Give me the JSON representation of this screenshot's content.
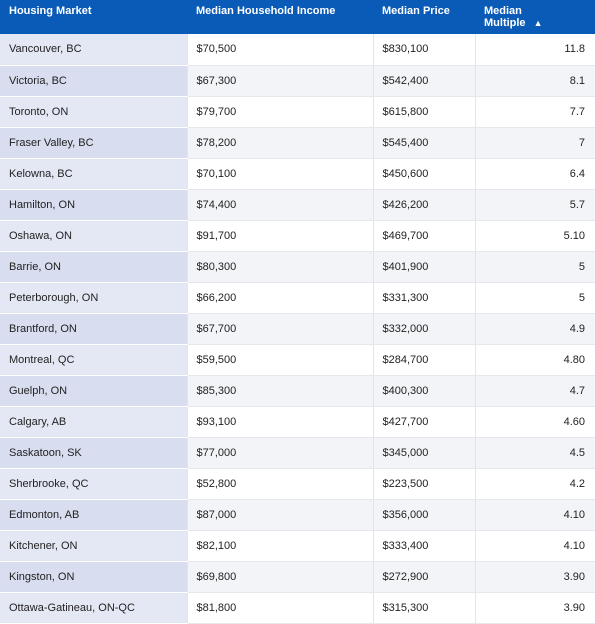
{
  "table": {
    "headers": {
      "market": "Housing Market",
      "income": "Median Household Income",
      "price": "Median Price",
      "multiple_line1": "Median",
      "multiple_line2": "Multiple"
    },
    "sort": {
      "column": "Median Multiple",
      "direction": "descending-arrow-up",
      "icon": "sort-arrow-up-icon"
    },
    "colors": {
      "header_bg": "#0a5bb8",
      "market_bg": "#e4e8f5",
      "market_bg_alt": "#d8ddef"
    },
    "rows": [
      {
        "market": "Vancouver, BC",
        "income": "$70,500",
        "price": "$830,100",
        "multiple": "11.8"
      },
      {
        "market": "Victoria, BC",
        "income": "$67,300",
        "price": "$542,400",
        "multiple": "8.1"
      },
      {
        "market": "Toronto, ON",
        "income": "$79,700",
        "price": "$615,800",
        "multiple": "7.7"
      },
      {
        "market": "Fraser Valley, BC",
        "income": "$78,200",
        "price": "$545,400",
        "multiple": "7"
      },
      {
        "market": "Kelowna, BC",
        "income": "$70,100",
        "price": "$450,600",
        "multiple": "6.4"
      },
      {
        "market": "Hamilton, ON",
        "income": "$74,400",
        "price": "$426,200",
        "multiple": "5.7"
      },
      {
        "market": "Oshawa, ON",
        "income": "$91,700",
        "price": "$469,700",
        "multiple": "5.10"
      },
      {
        "market": "Barrie, ON",
        "income": "$80,300",
        "price": "$401,900",
        "multiple": "5"
      },
      {
        "market": "Peterborough, ON",
        "income": "$66,200",
        "price": "$331,300",
        "multiple": "5"
      },
      {
        "market": "Brantford, ON",
        "income": "$67,700",
        "price": "$332,000",
        "multiple": "4.9"
      },
      {
        "market": "Montreal, QC",
        "income": "$59,500",
        "price": "$284,700",
        "multiple": "4.80"
      },
      {
        "market": "Guelph, ON",
        "income": "$85,300",
        "price": "$400,300",
        "multiple": "4.7"
      },
      {
        "market": "Calgary, AB",
        "income": "$93,100",
        "price": "$427,700",
        "multiple": "4.60"
      },
      {
        "market": "Saskatoon, SK",
        "income": "$77,000",
        "price": "$345,000",
        "multiple": "4.5"
      },
      {
        "market": "Sherbrooke, QC",
        "income": "$52,800",
        "price": "$223,500",
        "multiple": "4.2"
      },
      {
        "market": "Edmonton, AB",
        "income": "$87,000",
        "price": "$356,000",
        "multiple": "4.10"
      },
      {
        "market": "Kitchener, ON",
        "income": "$82,100",
        "price": "$333,400",
        "multiple": "4.10"
      },
      {
        "market": "Kingston, ON",
        "income": "$69,800",
        "price": "$272,900",
        "multiple": "3.90"
      },
      {
        "market": "Ottawa-Gatineau, ON-QC",
        "income": "$81,800",
        "price": "$315,300",
        "multiple": "3.90"
      }
    ]
  }
}
